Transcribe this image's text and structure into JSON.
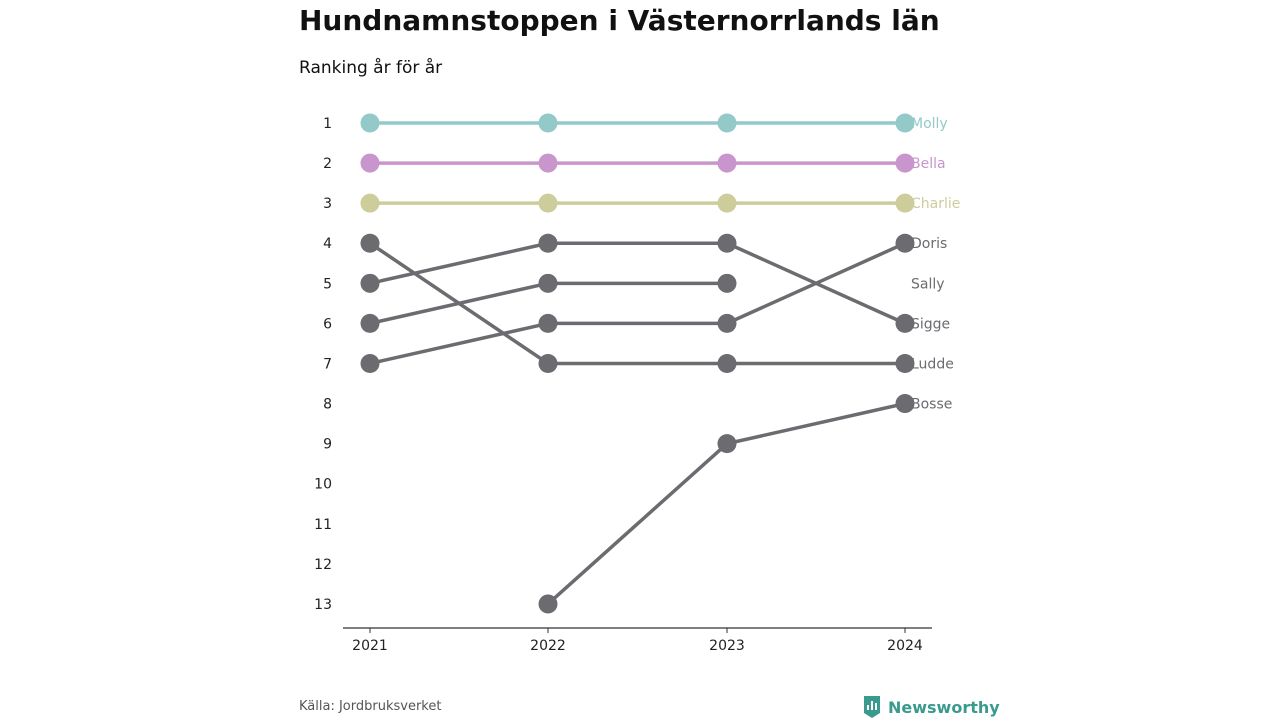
{
  "title": "Hundnamnstoppen i Västernorrlands län",
  "subtitle": "Ranking år för år",
  "source": "Källa: Jordbruksverket",
  "brand": {
    "name": "Newsworthy",
    "icon": "newsworthy-logo-icon",
    "color": "#3a9a8e"
  },
  "chart_data": {
    "type": "line",
    "subtype": "bump",
    "x": [
      "2021",
      "2022",
      "2023",
      "2024"
    ],
    "y_ticks": [
      "1",
      "2",
      "3",
      "4",
      "5",
      "6",
      "7",
      "8",
      "9",
      "10",
      "11",
      "12",
      "13"
    ],
    "ylim": [
      1,
      13
    ],
    "y_inverted": true,
    "grid": false,
    "series": [
      {
        "name": "Molly",
        "values": [
          1,
          1,
          1,
          1
        ],
        "color": "#93c9c9"
      },
      {
        "name": "Bella",
        "values": [
          2,
          2,
          2,
          2
        ],
        "color": "#c896cc"
      },
      {
        "name": "Charlie",
        "values": [
          3,
          3,
          3,
          3
        ],
        "color": "#cccd9b"
      },
      {
        "name": "Doris",
        "values": [
          7,
          6,
          6,
          4
        ],
        "color": "#6b6b70"
      },
      {
        "name": "Sally",
        "values": [
          null,
          null,
          null,
          null
        ],
        "color": "#6b6b70"
      },
      {
        "name": "Sigge",
        "values": [
          5,
          4,
          4,
          6
        ],
        "color": "#6b6b70"
      },
      {
        "name": "Ludde",
        "values": [
          4,
          7,
          7,
          7
        ],
        "color": "#6b6b70"
      },
      {
        "name": "Bosse",
        "values": [
          null,
          13,
          9,
          8
        ],
        "color": "#6b6b70"
      },
      {
        "name": "",
        "values": [
          6,
          5,
          5,
          null
        ],
        "color": "#6b6b70"
      }
    ]
  }
}
